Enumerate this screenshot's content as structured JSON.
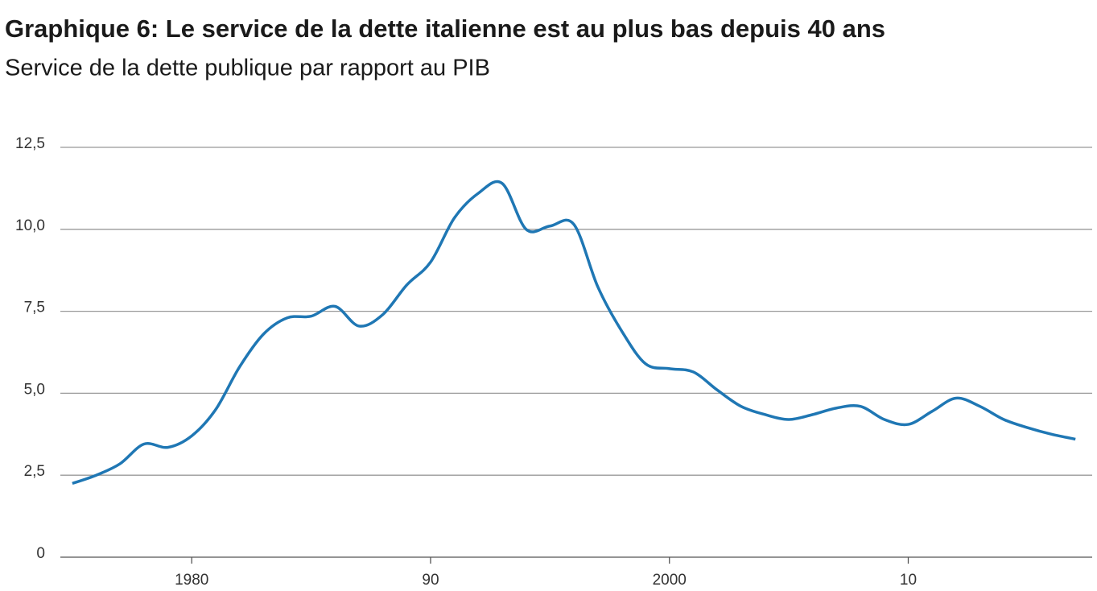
{
  "chart_data": {
    "type": "line",
    "title": "Graphique 6: Le service de la dette italienne est au plus bas depuis 40 ans",
    "subtitle": "Service de la dette publique par rapport au PIB",
    "x": [
      1975,
      1976,
      1977,
      1978,
      1979,
      1980,
      1981,
      1982,
      1983,
      1984,
      1985,
      1986,
      1987,
      1988,
      1989,
      1990,
      1991,
      1992,
      1993,
      1994,
      1995,
      1996,
      1997,
      1998,
      1999,
      2000,
      2001,
      2002,
      2003,
      2004,
      2005,
      2006,
      2007,
      2008,
      2009,
      2010,
      2011,
      2012,
      2013,
      2014,
      2015,
      2016,
      2017
    ],
    "series": [
      {
        "color": "#1f77b4",
        "values": [
          2.25,
          2.5,
          2.85,
          3.45,
          3.35,
          3.7,
          4.5,
          5.8,
          6.8,
          7.3,
          7.35,
          7.65,
          7.05,
          7.4,
          8.3,
          9.0,
          10.35,
          11.1,
          11.4,
          10.0,
          10.1,
          10.15,
          8.25,
          6.9,
          5.9,
          5.75,
          5.65,
          5.1,
          4.6,
          4.35,
          4.2,
          4.35,
          4.55,
          4.6,
          4.2,
          4.05,
          4.45,
          4.85,
          4.6,
          4.2,
          3.95,
          3.75,
          3.6
        ]
      }
    ],
    "xlim": [
      1974.5,
      2017.7
    ],
    "xticks": [
      1980,
      {
        "value": 1990,
        "label": "90"
      },
      2000,
      {
        "value": 2010,
        "label": "10"
      }
    ],
    "ylim": [
      0,
      12.5
    ],
    "yticks": [
      0,
      {
        "value": 2.5,
        "label": "2,5"
      },
      {
        "value": 5,
        "label": "5,0"
      },
      {
        "value": 7.5,
        "label": "7,5"
      },
      {
        "value": 10,
        "label": "10,0"
      },
      {
        "value": 12.5,
        "label": "12,5"
      }
    ],
    "grid": true
  }
}
